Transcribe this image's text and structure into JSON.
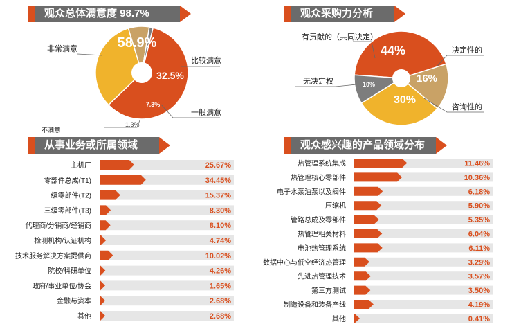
{
  "colors": {
    "orange": "#d94f1e",
    "yellow": "#f0b32c",
    "tan": "#c9a266",
    "gray": "#7d7d7d",
    "track": "#e6e6e6",
    "title_bg": "#6b6b6b"
  },
  "panels": {
    "satisfaction_title": "观众总体满意度 98.7%",
    "purchase_title": "观众采购力分析",
    "business_title": "从事业务或所属领域",
    "interest_title": "观众感兴趣的产品领域分布"
  },
  "chart_data": [
    {
      "type": "pie",
      "title": "观众总体满意度 98.7%",
      "slices": [
        {
          "label": "非常满意",
          "value": 58.9,
          "text": "58.9%",
          "color": "#d94f1e"
        },
        {
          "label": "比较满意",
          "value": 32.5,
          "text": "32.5%",
          "color": "#f0b32c"
        },
        {
          "label": "一般满意",
          "value": 7.3,
          "text": "7.3%",
          "color": "#c9a266"
        },
        {
          "label": "不满意",
          "value": 1.3,
          "text": "1.3%",
          "color": "#7d7d7d"
        }
      ]
    },
    {
      "type": "pie",
      "title": "观众采购力分析",
      "slices": [
        {
          "label": "有贡献的（共同决定）",
          "value": 44,
          "text": "44%",
          "color": "#d94f1e"
        },
        {
          "label": "决定性的",
          "value": 16,
          "text": "16%",
          "color": "#c9a266"
        },
        {
          "label": "咨询性的",
          "value": 30,
          "text": "30%",
          "color": "#f0b32c"
        },
        {
          "label": "无决定权",
          "value": 10,
          "text": "10%",
          "color": "#7d7d7d"
        }
      ]
    },
    {
      "type": "bar",
      "title": "从事业务或所属领域",
      "max": 100,
      "categories": [
        "主机厂",
        "零部件总成(T1)",
        "级零部件(T2)",
        "三级零部件(T3)",
        "代理商/分销商/经销商",
        "检测机构/认证机构",
        "技术服务解决方案提供商",
        "院校/科研单位",
        "政府/事业单位/协会",
        "金融与资本",
        "其他"
      ],
      "values": [
        25.67,
        34.45,
        15.37,
        8.3,
        8.1,
        4.74,
        10.02,
        4.26,
        1.65,
        2.68,
        2.68
      ],
      "value_labels": [
        "25.67%",
        "34.45%",
        "15.37%",
        "8.30%",
        "8.10%",
        "4.74%",
        "10.02%",
        "4.26%",
        "1.65%",
        "2.68%",
        "2.68%"
      ]
    },
    {
      "type": "bar",
      "title": "观众感兴趣的产品领域分布",
      "max": 30,
      "categories": [
        "热管理系统集成",
        "热管理核心零部件",
        "电子水泵油泵以及阀件",
        "压缩机",
        "管路总成及零部件",
        "热管理相关材料",
        "电池热管理系统",
        "数据中心与低空经济热管理",
        "先进热管理技术",
        "第三方测试",
        "制造设备和装备产线",
        "其他"
      ],
      "values": [
        11.46,
        10.36,
        6.18,
        5.9,
        5.35,
        6.04,
        6.11,
        3.29,
        3.57,
        3.5,
        4.19,
        0.41
      ],
      "value_labels": [
        "11.46%",
        "10.36%",
        "6.18%",
        "5.90%",
        "5.35%",
        "6.04%",
        "6.11%",
        "3.29%",
        "3.57%",
        "3.50%",
        "4.19%",
        "0.41%"
      ]
    }
  ]
}
